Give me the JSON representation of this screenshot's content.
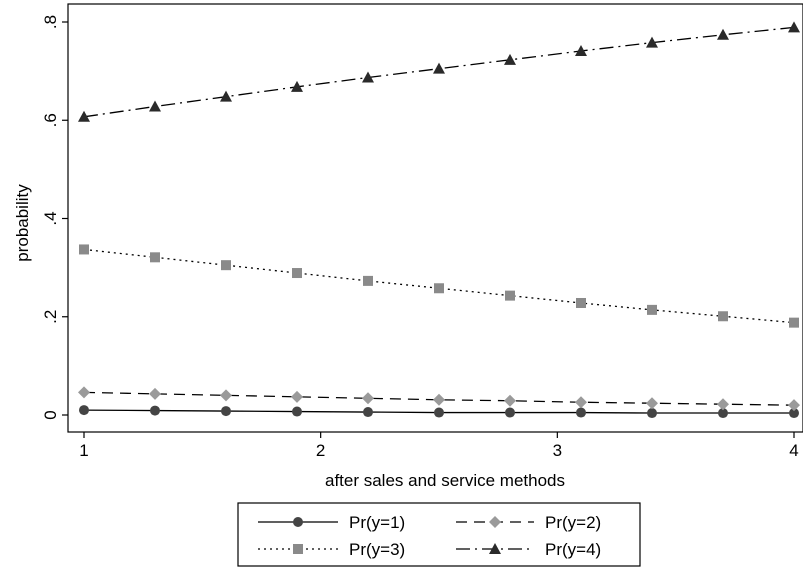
{
  "chart_data": {
    "type": "line",
    "title": "",
    "xlabel": "after sales and service methods",
    "ylabel": "probability",
    "xlim": [
      1,
      4
    ],
    "ylim": [
      0,
      0.8
    ],
    "xticks": [
      1,
      2,
      3,
      4
    ],
    "xtick_labels": [
      "1",
      "2",
      "3",
      "4"
    ],
    "yticks": [
      0,
      0.2,
      0.4,
      0.6,
      0.8
    ],
    "ytick_labels": [
      "0",
      ".2",
      ".4",
      ".6",
      ".8"
    ],
    "grid": false,
    "legend_position": "bottom",
    "x": [
      1,
      1.3,
      1.6,
      1.9,
      2.2,
      2.5,
      2.8,
      3.1,
      3.4,
      3.7,
      4
    ],
    "series": [
      {
        "name": "Pr(y=1)",
        "marker": "circle",
        "line": "solid",
        "color": "#000000",
        "marker_color": "#444444",
        "values": [
          0.01,
          0.009,
          0.008,
          0.007,
          0.006,
          0.005,
          0.005,
          0.005,
          0.004,
          0.004,
          0.004
        ]
      },
      {
        "name": "Pr(y=2)",
        "marker": "diamond",
        "line": "dashed",
        "color": "#000000",
        "marker_color": "#9a9a9a",
        "values": [
          0.046,
          0.043,
          0.04,
          0.037,
          0.034,
          0.031,
          0.029,
          0.026,
          0.024,
          0.022,
          0.02
        ]
      },
      {
        "name": "Pr(y=3)",
        "marker": "square",
        "line": "dotted",
        "color": "#000000",
        "marker_color": "#8a8a8a",
        "values": [
          0.337,
          0.321,
          0.305,
          0.289,
          0.273,
          0.258,
          0.243,
          0.228,
          0.214,
          0.201,
          0.188
        ]
      },
      {
        "name": "Pr(y=4)",
        "marker": "triangle",
        "line": "dash-dot",
        "color": "#000000",
        "marker_color": "#2a2a2a",
        "values": [
          0.607,
          0.628,
          0.648,
          0.668,
          0.687,
          0.705,
          0.723,
          0.741,
          0.758,
          0.774,
          0.789
        ]
      }
    ]
  }
}
